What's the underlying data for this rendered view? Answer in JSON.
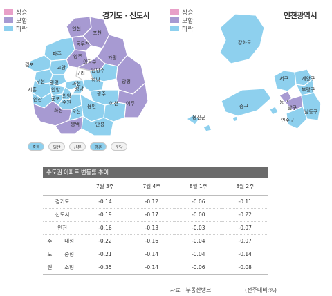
{
  "legend": {
    "items": [
      {
        "label": "상승",
        "color": "#e8a0c8"
      },
      {
        "label": "보합",
        "color": "#a79ad2"
      },
      {
        "label": "하락",
        "color": "#8ed0ee"
      }
    ]
  },
  "gyeonggi": {
    "title": "경기도 · 신도시",
    "labels": [
      "연천",
      "포천",
      "동두천",
      "파주",
      "양주",
      "의정부",
      "가평",
      "김포",
      "고양",
      "구리",
      "남양주",
      "부천",
      "광명",
      "과천",
      "성남",
      "하남",
      "양평",
      "시흥",
      "안양",
      "의왕",
      "광주",
      "안산",
      "군포",
      "용인",
      "이천",
      "여주",
      "화성",
      "오산",
      "수원",
      "평택",
      "안성"
    ]
  },
  "incheon": {
    "title": "인천광역시",
    "labels": [
      "강화도",
      "서구",
      "계양구",
      "부평구",
      "동구",
      "중구",
      "남구",
      "연수구",
      "남동구",
      "옹진군"
    ]
  },
  "new_towns": {
    "items": [
      "중동",
      "일산",
      "산본",
      "평촌",
      "분당"
    ]
  },
  "table": {
    "title": "수도권 아파트 변동률 추이",
    "columns": [
      "7월 3주",
      "7월 4주",
      "8월 1주",
      "8월 2주"
    ],
    "rows": [
      {
        "label": "경기도",
        "values": [
          "-0.14",
          "-0.12",
          "-0.06",
          "-0.11"
        ]
      },
      {
        "label": "신도시",
        "values": [
          "-0.19",
          "-0.17",
          "-0.00",
          "-0.22"
        ]
      },
      {
        "label": "인천",
        "values": [
          "-0.16",
          "-0.13",
          "-0.03",
          "-0.07"
        ]
      },
      {
        "group": "수",
        "label": "대형",
        "values": [
          "-0.22",
          "-0.16",
          "-0.04",
          "-0.07"
        ]
      },
      {
        "group": "도",
        "label": "중형",
        "values": [
          "-0.21",
          "-0.14",
          "-0.04",
          "-0.14"
        ]
      },
      {
        "group": "권",
        "label": "소형",
        "values": [
          "-0.35",
          "-0.14",
          "-0.06",
          "-0.08"
        ]
      }
    ],
    "source": "자료 : 부동산뱅크",
    "unit": "(전주대비:%)"
  }
}
